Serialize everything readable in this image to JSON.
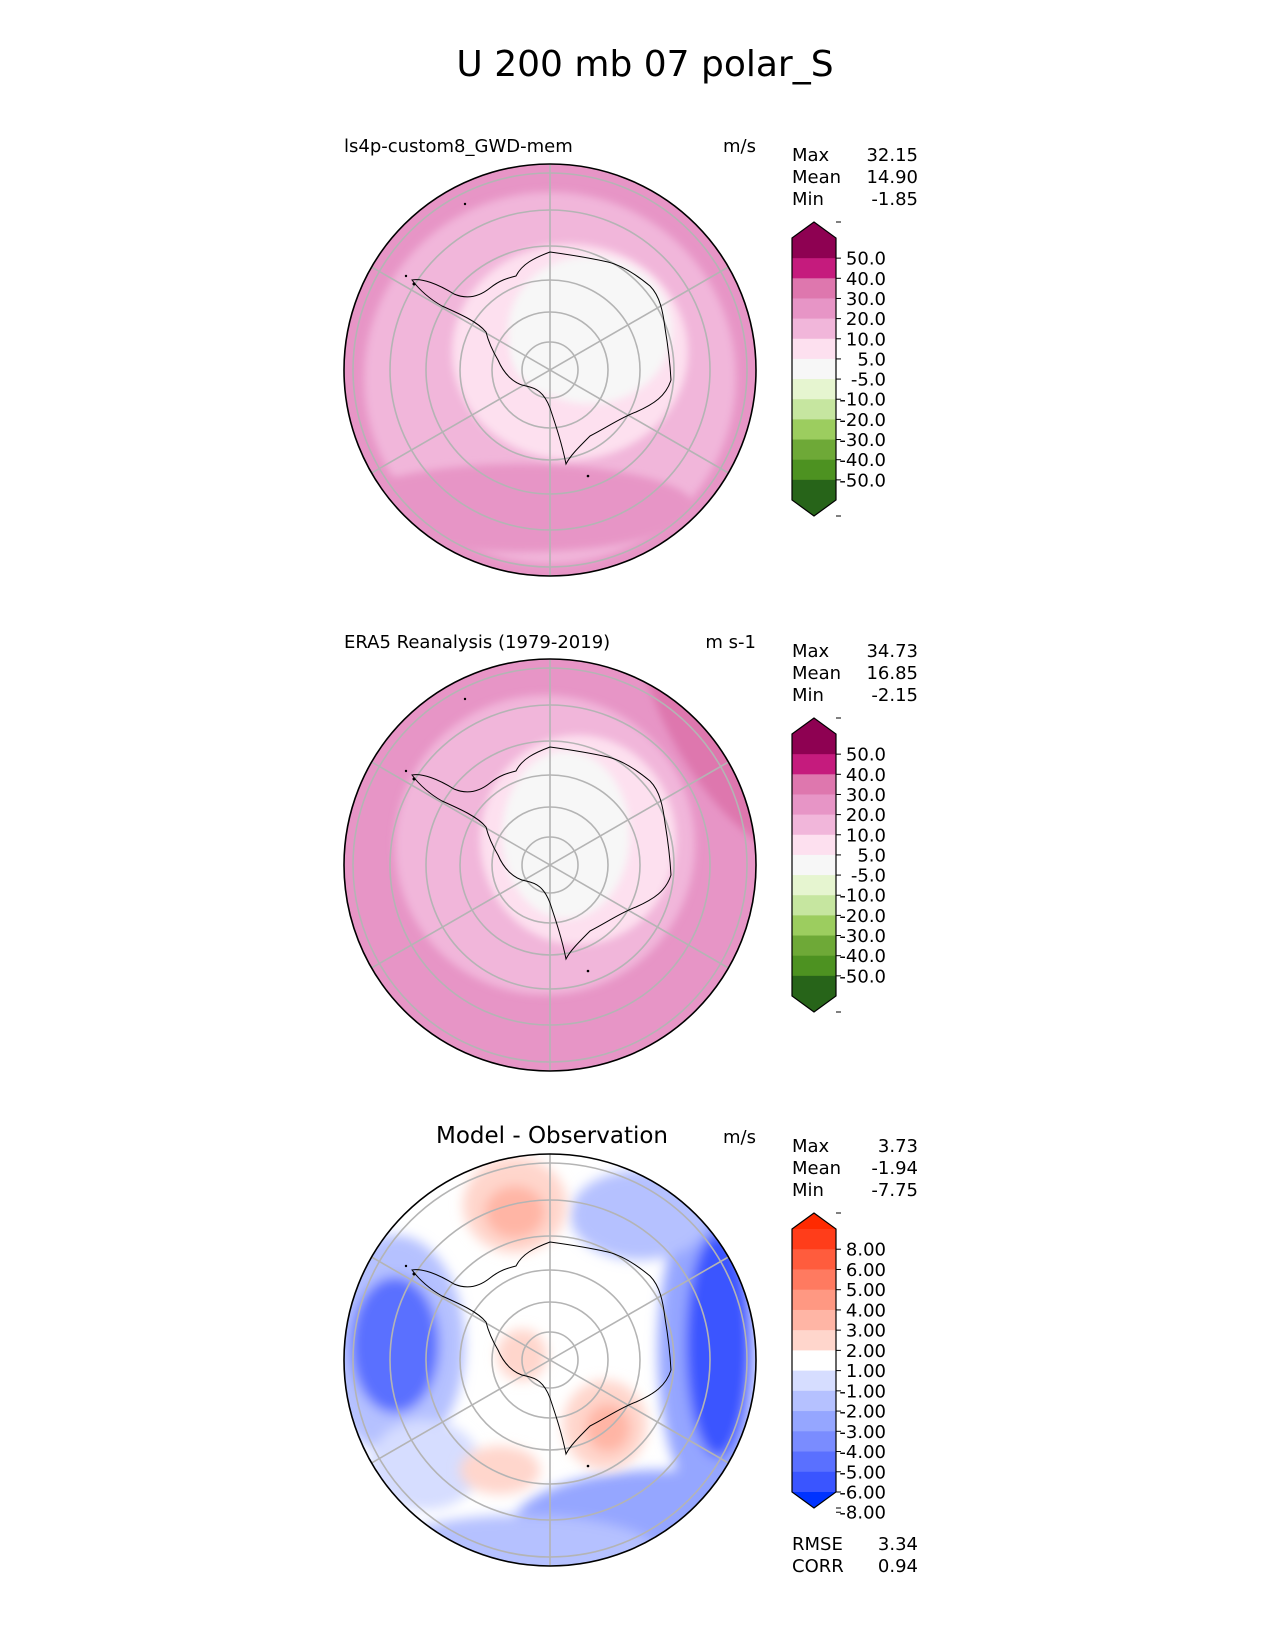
{
  "title": "U 200 mb 07 polar_S",
  "stat_labels": {
    "max": "Max",
    "mean": "Mean",
    "min": "Min",
    "rmse": "RMSE",
    "corr": "CORR"
  },
  "chart_data": [
    {
      "type": "heatmap",
      "projection": "south polar stereographic",
      "title": "ls4p-custom8_GWD-mem",
      "units": "m/s",
      "stats": {
        "max": "32.15",
        "mean": "14.90",
        "min": "-1.85"
      },
      "colorbar": {
        "ticks": [
          "50.0",
          "40.0",
          "30.0",
          "20.0",
          "10.0",
          "5.0",
          "-5.0",
          "-10.0",
          "-20.0",
          "-30.0",
          "-40.0",
          "-50.0"
        ],
        "colors_top_to_bottom": [
          "#8e0152",
          "#c51b7d",
          "#de77ae",
          "#e795c6",
          "#f1b6da",
          "#fde0ef",
          "#f7f7f7",
          "#e6f5d0",
          "#c6e6a0",
          "#9ccd5f",
          "#6ea937",
          "#4d9221",
          "#276419"
        ],
        "extend_top": "#8e0152",
        "extend_bottom": "#276419"
      },
      "field": {
        "outer_ring_class": "20.0 to 30.0",
        "mid_ring_class": "10.0 to 20.0",
        "interior_class": "5.0 to 10.0",
        "pole_class": "-5.0 to 5.0",
        "jet_maximum_sector": "Pacific (lower half)",
        "jet_maximum_class": "20.0 to 30.0"
      }
    },
    {
      "type": "heatmap",
      "projection": "south polar stereographic",
      "title": "ERA5 Reanalysis (1979-2019)",
      "units": "m s-1",
      "stats": {
        "max": "34.73",
        "mean": "16.85",
        "min": "-2.15"
      },
      "colorbar": {
        "ticks": [
          "50.0",
          "40.0",
          "30.0",
          "20.0",
          "10.0",
          "5.0",
          "-5.0",
          "-10.0",
          "-20.0",
          "-30.0",
          "-40.0",
          "-50.0"
        ],
        "colors_top_to_bottom": [
          "#8e0152",
          "#c51b7d",
          "#de77ae",
          "#e795c6",
          "#f1b6da",
          "#fde0ef",
          "#f7f7f7",
          "#e6f5d0",
          "#c6e6a0",
          "#9ccd5f",
          "#6ea937",
          "#4d9221",
          "#276419"
        ],
        "extend_top": "#8e0152",
        "extend_bottom": "#276419"
      },
      "field": {
        "outer_ring_class": "20.0 to 30.0",
        "mid_ring_class": "10.0 to 20.0",
        "interior_class": "5.0 to 10.0",
        "pole_class": "-5.0 to 5.0",
        "edge_maximum_sector": "upper right",
        "edge_maximum_class": "30.0 to 40.0"
      }
    },
    {
      "type": "heatmap",
      "projection": "south polar stereographic",
      "title": "Model - Observation",
      "units": "m/s",
      "stats": {
        "max": "3.73",
        "mean": "-1.94",
        "min": "-7.75",
        "rmse": "3.34",
        "corr": "0.94"
      },
      "colorbar": {
        "ticks": [
          "8.00",
          "6.00",
          "5.00",
          "4.00",
          "3.00",
          "2.00",
          "1.00",
          "-1.00",
          "-2.00",
          "-3.00",
          "-4.00",
          "-5.00",
          "-6.00",
          "-8.00"
        ],
        "colors_top_to_bottom": [
          "#ff3d1a",
          "#ff5c3d",
          "#ff7a60",
          "#ff9882",
          "#ffb5a5",
          "#ffd6cc",
          "#ffffff",
          "#d6ddff",
          "#b5c1ff",
          "#95a6ff",
          "#7a8cff",
          "#5a70ff",
          "#3a55ff"
        ],
        "extend_top": "#ff2a00",
        "extend_bottom": "#0033ff"
      },
      "field": {
        "positive_areas": [
          "top",
          "near pole",
          "lower right",
          "lower left"
        ],
        "strongest_negative_area": "right edge",
        "strongest_negative_class": "-6.00 to -8.00",
        "left_negative_class": "-4.00 to -6.00"
      }
    }
  ]
}
